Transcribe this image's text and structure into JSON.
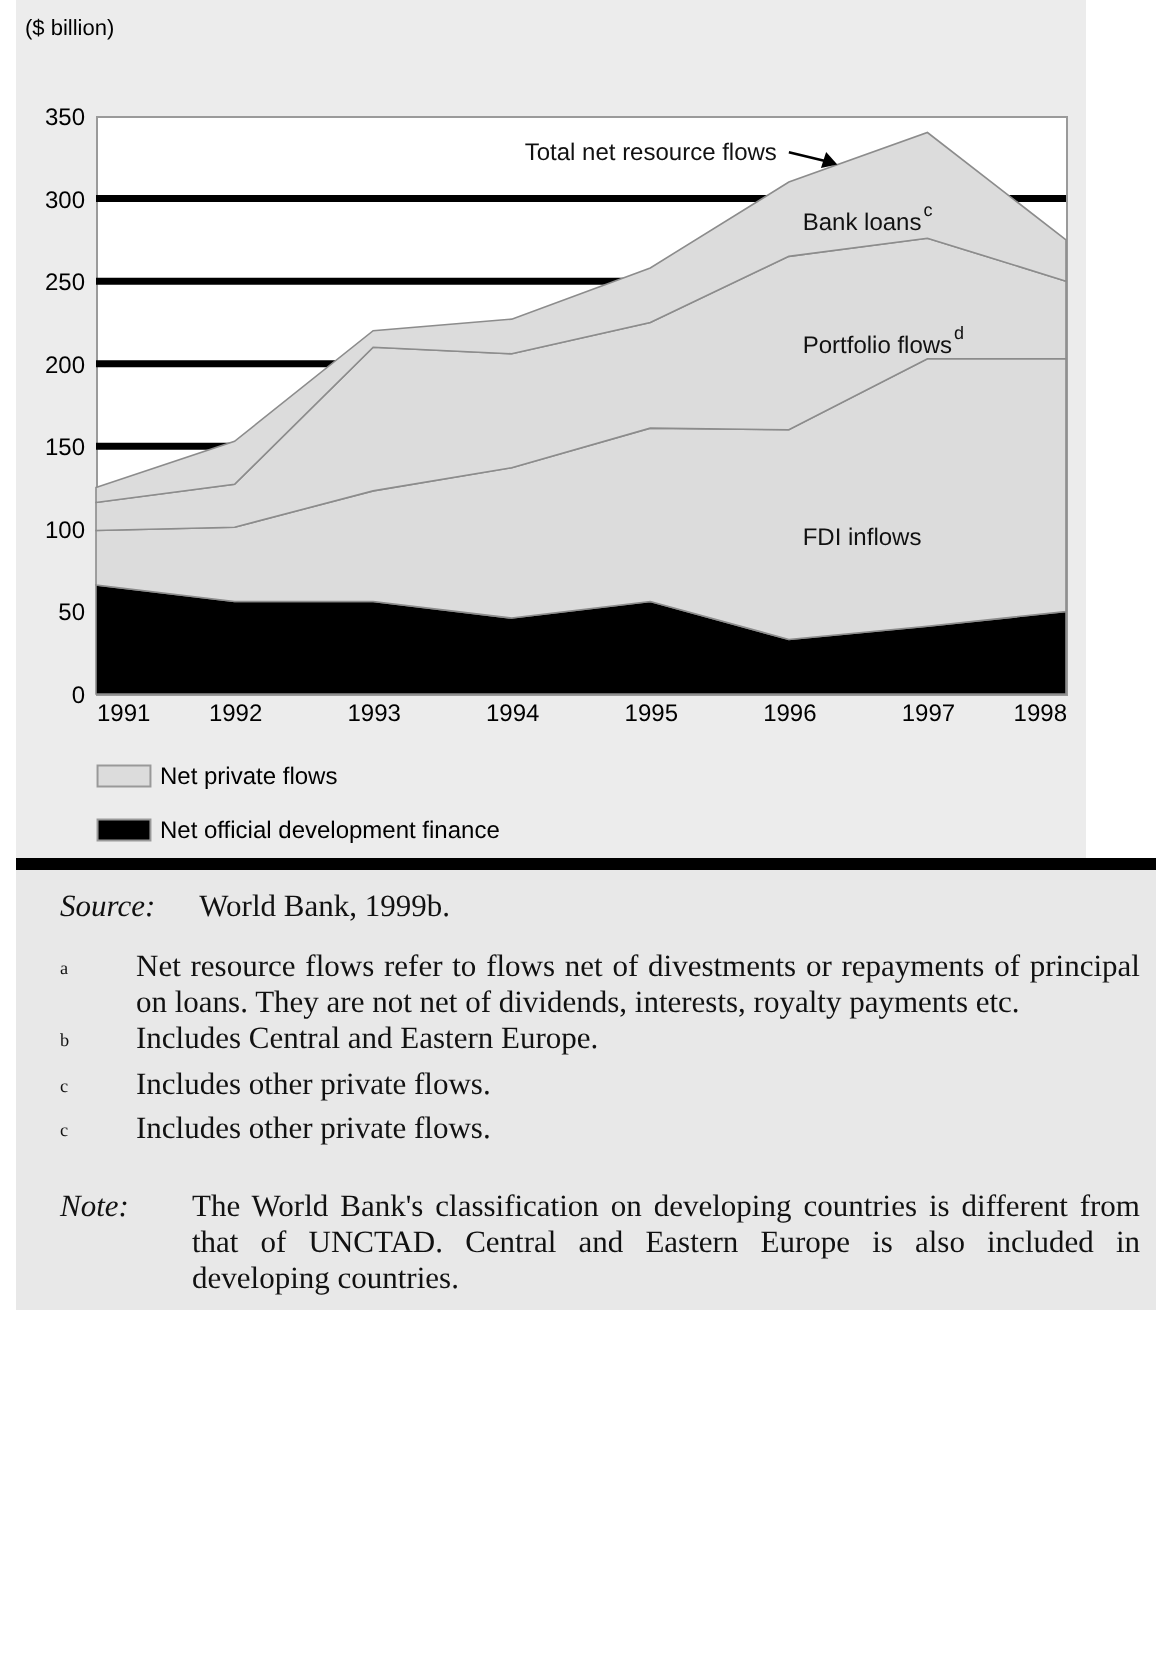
{
  "chart_data": {
    "type": "area",
    "stacked": true,
    "ylabel": "($ billion)",
    "x": [
      1991,
      1992,
      1993,
      1994,
      1995,
      1996,
      1997,
      1998
    ],
    "xlim": [
      1991,
      1998
    ],
    "xticks": [
      1991,
      1992,
      1993,
      1994,
      1995,
      1996,
      1997,
      1998
    ],
    "ylim": [
      0,
      350
    ],
    "yticks": [
      0,
      50,
      100,
      150,
      200,
      250,
      300,
      350
    ],
    "grid": "y",
    "legend": "bottom",
    "series": [
      {
        "name": "Net official development finance",
        "color": "#000000",
        "values": [
          66,
          56,
          56,
          46,
          56,
          33,
          41,
          50
        ]
      },
      {
        "name": "FDI inflows",
        "color": "#dcdcdc",
        "values": [
          33,
          45,
          67,
          91,
          105,
          127,
          162,
          153
        ]
      },
      {
        "name": "Portfolio flows$^{d}$",
        "color": "#dcdcdc",
        "values": [
          17,
          26,
          87,
          69,
          64,
          105,
          73,
          47
        ]
      },
      {
        "name": "Bank loans$^{c}$",
        "color": "#dcdcdc",
        "values": [
          9,
          26,
          10,
          21,
          33,
          45,
          64,
          25
        ]
      }
    ],
    "annotations": [
      "Net private flows",
      {
        "text": "Total net resource flows",
        "x": 1996.3,
        "y": 322
      },
      "Source: World Bank, 1999b.",
      "$^{a}$ Net resource flows refer to flows net of divestments or repayments of principal on loans. They are not net of dividends, interests, royalty payments etc.",
      "$^{b}$ Includes Central and Eastern Europe.",
      "$^{c}$ Includes other private flows.",
      "$^{c}$ Includes other private flows.",
      "Note: The World Bank's classification on developing countries is different from that of UNCTAD. Central and  Eastern Europe is also included in developing countries."
    ]
  }
}
